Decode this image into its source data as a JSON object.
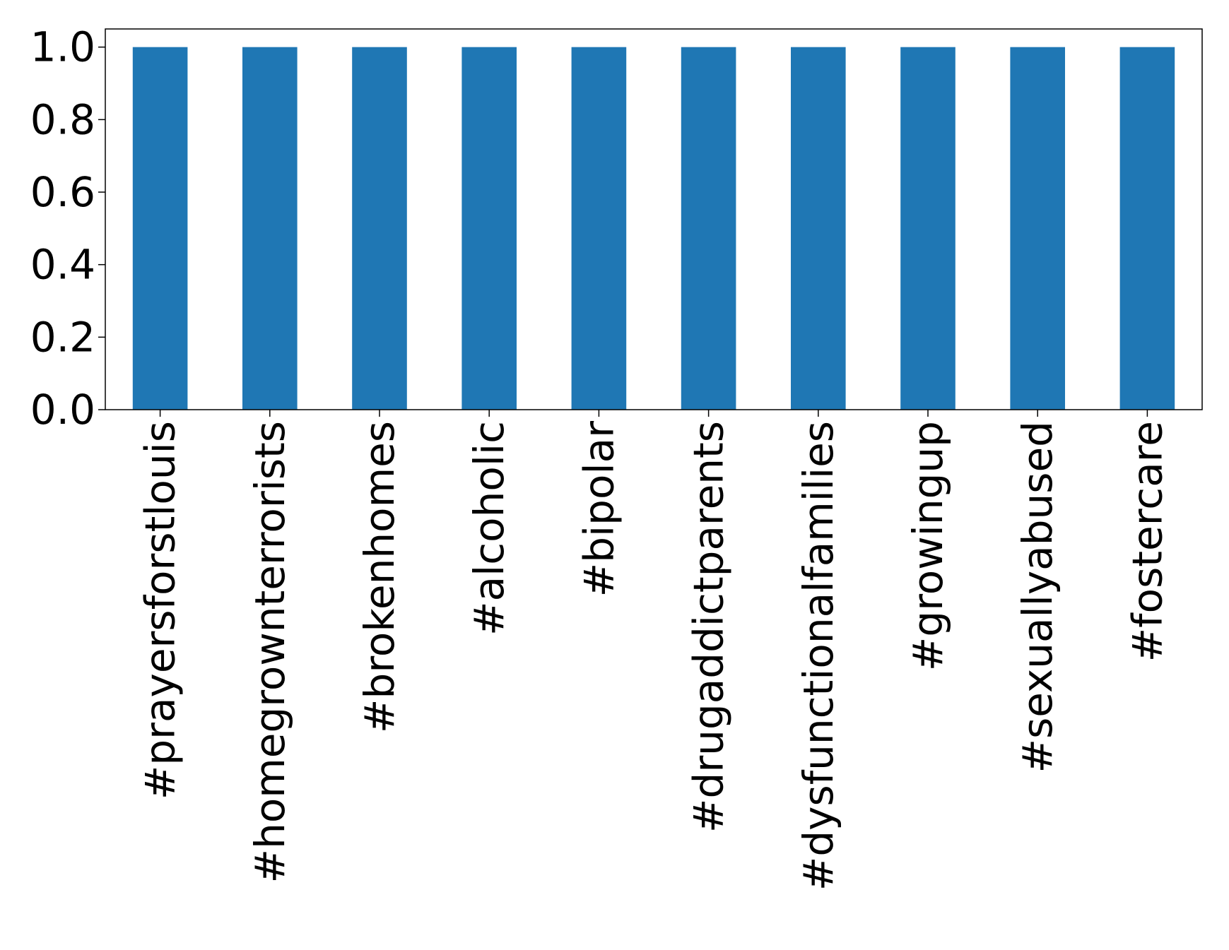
{
  "chart_data": {
    "type": "bar",
    "title": "",
    "xlabel": "",
    "ylabel": "",
    "categories": [
      "#prayersforstlouis",
      "#homegrownterrorists",
      "#brokenhomes",
      "#alcoholic",
      "#bipolar",
      "#drugaddictparents",
      "#dysfunctionalfamilies",
      "#growingup",
      "#sexuallyabused",
      "#fostercare"
    ],
    "values": [
      1.0,
      1.0,
      1.0,
      1.0,
      1.0,
      1.0,
      1.0,
      1.0,
      1.0,
      1.0
    ],
    "ylim": [
      0,
      1.05
    ],
    "yticks": [
      "0.0",
      "0.2",
      "0.4",
      "0.6",
      "0.8",
      "1.0"
    ],
    "grid": false,
    "legend": "none",
    "bar_color": "#1f77b4"
  }
}
